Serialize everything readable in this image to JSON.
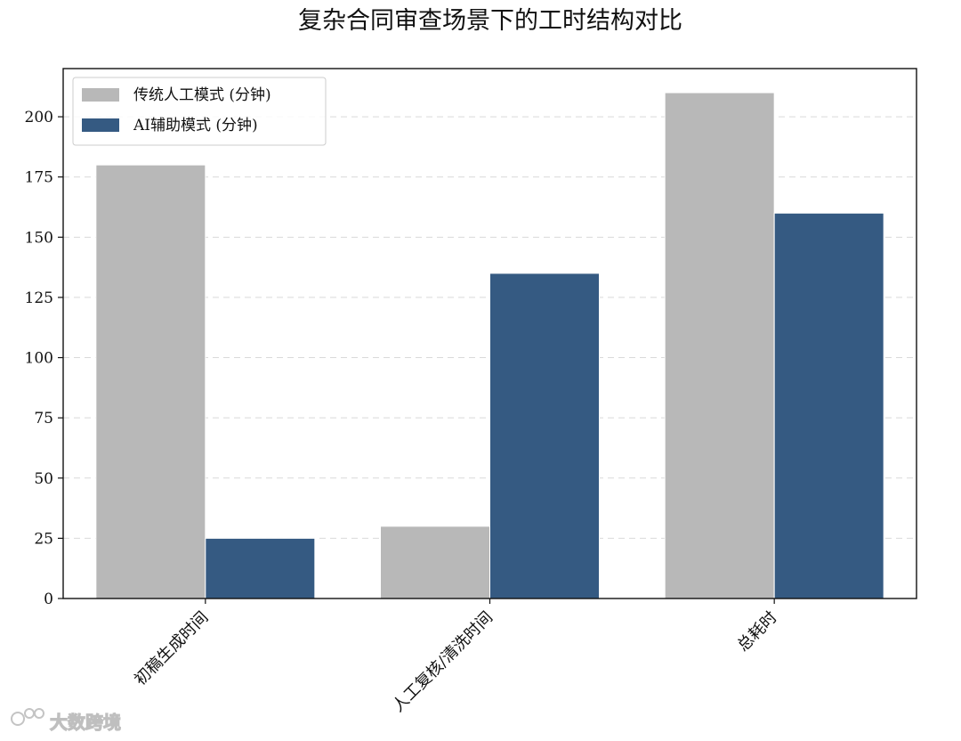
{
  "chart_data": {
    "type": "bar",
    "title": "复杂合同审查场景下的工时结构对比",
    "xlabel": "",
    "ylabel": "",
    "categories": [
      "初稿生成时间",
      "人工复核/清洗时间",
      "总耗时"
    ],
    "series": [
      {
        "name": "传统人工模式 (分钟)",
        "values": [
          180,
          30,
          210
        ],
        "color": "#b8b8b8"
      },
      {
        "name": "AI辅助模式 (分钟)",
        "values": [
          25,
          135,
          160
        ],
        "color": "#355a82"
      }
    ],
    "ylim": [
      0,
      220
    ],
    "yticks": [
      0,
      25,
      50,
      75,
      100,
      125,
      150,
      175,
      200
    ],
    "grid": true,
    "grid_axis": "y",
    "legend_position": "top-left"
  },
  "watermark": {
    "text": "大数跨境"
  }
}
